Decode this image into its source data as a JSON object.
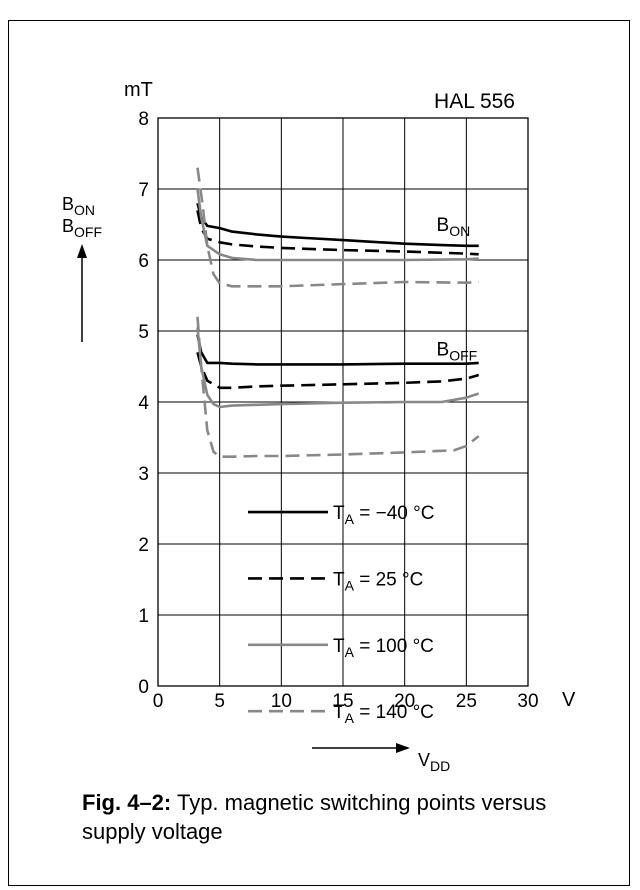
{
  "chart_data": {
    "type": "line",
    "title": "HAL 556",
    "x_axis": {
      "label": "V",
      "label_bottom": "V",
      "label_bottom_sub": "DD",
      "range": [
        0,
        30
      ],
      "ticks": [
        "0",
        "5",
        "10",
        "15",
        "20",
        "25",
        "30"
      ]
    },
    "y_axis": {
      "unit": "mT",
      "range": [
        0,
        8
      ],
      "ticks": [
        "0",
        "1",
        "2",
        "3",
        "4",
        "5",
        "6",
        "7",
        "8"
      ],
      "label_line1": "B",
      "label_line1_sub": "ON",
      "label_line2": "B",
      "label_line2_sub": "OFF"
    },
    "grid": true,
    "legend_position": "lower-center",
    "curve_labels": [
      {
        "text": "B",
        "sub": "ON",
        "x": 22.5,
        "y": 6.35
      },
      {
        "text": "B",
        "sub": "OFF",
        "x": 22.5,
        "y": 4.6
      }
    ],
    "series": [
      {
        "name": "T",
        "name_sub": "A",
        "name_rest": " = −40 °C",
        "color": "#000000",
        "dash": "solid",
        "group": "B_ON",
        "points": [
          [
            3.2,
            6.8
          ],
          [
            3.5,
            6.6
          ],
          [
            4,
            6.48
          ],
          [
            5,
            6.45
          ],
          [
            6,
            6.4
          ],
          [
            8,
            6.36
          ],
          [
            10,
            6.33
          ],
          [
            12,
            6.31
          ],
          [
            15,
            6.28
          ],
          [
            18,
            6.25
          ],
          [
            20,
            6.23
          ],
          [
            23,
            6.21
          ],
          [
            25,
            6.2
          ],
          [
            26,
            6.2
          ]
        ]
      },
      {
        "name": "T",
        "name_sub": "A",
        "name_rest": " = 25 °C",
        "color": "#000000",
        "dash": "dashed",
        "group": "B_ON",
        "points": [
          [
            3.2,
            6.7
          ],
          [
            3.5,
            6.45
          ],
          [
            4,
            6.3
          ],
          [
            5,
            6.25
          ],
          [
            6,
            6.22
          ],
          [
            8,
            6.19
          ],
          [
            10,
            6.17
          ],
          [
            15,
            6.14
          ],
          [
            20,
            6.12
          ],
          [
            25,
            6.09
          ],
          [
            26,
            6.08
          ]
        ]
      },
      {
        "name": "T",
        "name_sub": "A",
        "name_rest": " = 100 °C",
        "color": "#888888",
        "dash": "solid",
        "group": "B_ON",
        "points": [
          [
            3.2,
            7.0
          ],
          [
            3.5,
            6.6
          ],
          [
            4,
            6.2
          ],
          [
            5,
            6.08
          ],
          [
            6,
            6.03
          ],
          [
            8,
            6.0
          ],
          [
            10,
            6.0
          ],
          [
            15,
            6.0
          ],
          [
            20,
            6.0
          ],
          [
            25,
            6.01
          ],
          [
            26,
            6.02
          ]
        ]
      },
      {
        "name": "T",
        "name_sub": "A",
        "name_rest": " = 140 °C",
        "color": "#888888",
        "dash": "dashed",
        "group": "B_ON",
        "points": [
          [
            3.2,
            7.3
          ],
          [
            3.6,
            6.8
          ],
          [
            4,
            6.2
          ],
          [
            4.5,
            5.8
          ],
          [
            5,
            5.67
          ],
          [
            6,
            5.63
          ],
          [
            8,
            5.63
          ],
          [
            10,
            5.63
          ],
          [
            15,
            5.66
          ],
          [
            20,
            5.69
          ],
          [
            25,
            5.68
          ],
          [
            26,
            5.69
          ]
        ]
      },
      {
        "name": "T",
        "name_sub": "A",
        "name_rest": " = −40 °C",
        "color": "#000000",
        "dash": "solid",
        "group": "B_OFF",
        "points": [
          [
            3.2,
            4.95
          ],
          [
            3.5,
            4.7
          ],
          [
            4,
            4.55
          ],
          [
            5,
            4.55
          ],
          [
            6,
            4.54
          ],
          [
            8,
            4.53
          ],
          [
            10,
            4.53
          ],
          [
            15,
            4.53
          ],
          [
            20,
            4.54
          ],
          [
            25,
            4.54
          ],
          [
            26,
            4.55
          ]
        ]
      },
      {
        "name": "T",
        "name_sub": "A",
        "name_rest": " = 25 °C",
        "color": "#000000",
        "dash": "dashed",
        "group": "B_OFF",
        "points": [
          [
            3.2,
            4.7
          ],
          [
            3.5,
            4.5
          ],
          [
            4,
            4.3
          ],
          [
            5,
            4.2
          ],
          [
            6,
            4.2
          ],
          [
            8,
            4.22
          ],
          [
            10,
            4.23
          ],
          [
            15,
            4.25
          ],
          [
            20,
            4.27
          ],
          [
            23,
            4.29
          ],
          [
            25,
            4.33
          ],
          [
            26,
            4.38
          ]
        ]
      },
      {
        "name": "T",
        "name_sub": "A",
        "name_rest": " = 100 °C",
        "color": "#888888",
        "dash": "solid",
        "group": "B_OFF",
        "points": [
          [
            3.2,
            5.05
          ],
          [
            3.5,
            4.5
          ],
          [
            4,
            4.1
          ],
          [
            4.5,
            3.97
          ],
          [
            5,
            3.93
          ],
          [
            6,
            3.95
          ],
          [
            8,
            3.96
          ],
          [
            10,
            3.97
          ],
          [
            15,
            3.99
          ],
          [
            20,
            4.0
          ],
          [
            23,
            4.0
          ],
          [
            25,
            4.06
          ],
          [
            26,
            4.12
          ]
        ]
      },
      {
        "name": "T",
        "name_sub": "A",
        "name_rest": " = 140 °C",
        "color": "#888888",
        "dash": "dashed",
        "group": "B_OFF",
        "points": [
          [
            3.2,
            5.2
          ],
          [
            3.5,
            4.5
          ],
          [
            4,
            3.6
          ],
          [
            4.5,
            3.3
          ],
          [
            5,
            3.23
          ],
          [
            6,
            3.23
          ],
          [
            8,
            3.24
          ],
          [
            10,
            3.24
          ],
          [
            15,
            3.26
          ],
          [
            20,
            3.29
          ],
          [
            24,
            3.32
          ],
          [
            25,
            3.38
          ],
          [
            26,
            3.52
          ]
        ]
      }
    ],
    "legend": [
      {
        "text": "T",
        "sub": "A",
        "rest": " = −40 °C",
        "color": "#000000",
        "dash": "solid"
      },
      {
        "text": "T",
        "sub": "A",
        "rest": " = 25 °C",
        "color": "#000000",
        "dash": "dashed"
      },
      {
        "text": "T",
        "sub": "A",
        "rest": " = 100 °C",
        "color": "#888888",
        "dash": "solid"
      },
      {
        "text": "T",
        "sub": "A",
        "rest": " = 140 °C",
        "color": "#888888",
        "dash": "dashed"
      }
    ]
  },
  "caption": {
    "prefix": "Fig. 4–2:",
    "text": " Typ. magnetic switching points versus supply voltage"
  }
}
